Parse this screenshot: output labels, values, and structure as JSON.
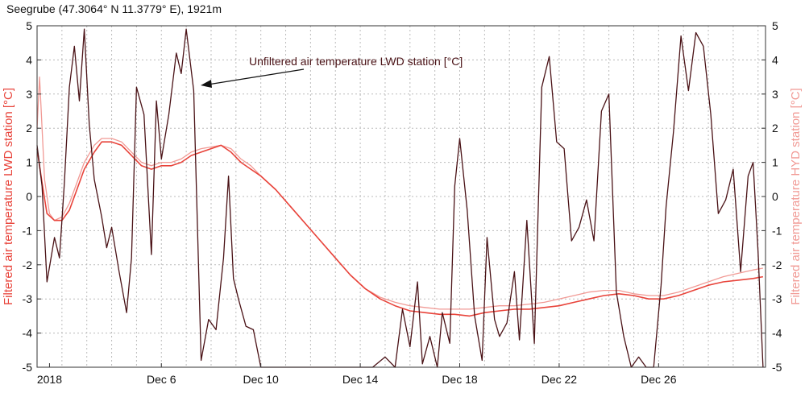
{
  "chart_data": {
    "type": "line",
    "title": "Seegrube (47.3064° N 11.3779° E), 1921m",
    "ylabel_left": "Filtered air temperature LWD station [°C]",
    "ylabel_right": "Filtered air temperature HYD station [°C]",
    "annotation": "Unfiltered air temperature LWD station [°C]",
    "ylim": [
      -5,
      5
    ],
    "yticks": [
      -5,
      -4,
      -3,
      -2,
      -1,
      0,
      1,
      2,
      3,
      4,
      5
    ],
    "xlim_days": [
      0,
      29.3
    ],
    "xticks": [
      {
        "label": "2018",
        "day": 0.5
      },
      {
        "label": "Dec 6",
        "day": 5
      },
      {
        "label": "Dec 10",
        "day": 9
      },
      {
        "label": "Dec 14",
        "day": 13
      },
      {
        "label": "Dec 18",
        "day": 17
      },
      {
        "label": "Dec 22",
        "day": 21
      },
      {
        "label": "Dec 26",
        "day": 25
      }
    ],
    "grid": true,
    "colors": {
      "unfiltered": "#4a1216",
      "lwd_filtered": "#e8433a",
      "hyd_filtered": "#f19a95",
      "left_axis_label": "#e8433a",
      "right_axis_label": "#f19a95",
      "grid": "#bbbbbb",
      "annotation_text": "#4a1216"
    },
    "series": [
      {
        "name": "Unfiltered air temperature LWD station [°C]",
        "key": "unfiltered",
        "x": [
          0,
          0.2,
          0.4,
          0.7,
          0.9,
          1.1,
          1.3,
          1.5,
          1.7,
          1.9,
          2.1,
          2.3,
          2.6,
          2.8,
          3.0,
          3.3,
          3.6,
          3.8,
          4.0,
          4.3,
          4.6,
          4.8,
          5.0,
          5.3,
          5.6,
          5.8,
          6.0,
          6.3,
          6.6,
          6.9,
          7.2,
          7.5,
          7.7,
          7.9,
          8.1,
          8.4,
          8.7,
          9.0,
          9.3,
          9.6,
          9.9,
          10.2,
          10.5,
          10.8,
          11.1,
          11.5,
          12.0,
          12.5,
          13.0,
          13.5,
          14.0,
          14.4,
          14.7,
          15.0,
          15.3,
          15.5,
          15.8,
          16.1,
          16.3,
          16.6,
          16.8,
          17.0,
          17.3,
          17.6,
          17.9,
          18.1,
          18.4,
          18.6,
          18.9,
          19.2,
          19.4,
          19.7,
          20.0,
          20.3,
          20.6,
          20.9,
          21.2,
          21.5,
          21.8,
          22.1,
          22.4,
          22.7,
          23.0,
          23.3,
          23.6,
          23.9,
          24.2,
          24.5,
          24.8,
          25.1,
          25.3,
          25.6,
          25.9,
          26.2,
          26.5,
          26.8,
          27.1,
          27.4,
          27.7,
          28.0,
          28.3,
          28.6,
          28.8,
          29.0,
          29.2
        ],
        "values": [
          1.5,
          0.3,
          -2.5,
          -1.2,
          -1.8,
          0.4,
          3.2,
          4.4,
          2.8,
          4.9,
          2.1,
          0.5,
          -0.6,
          -1.5,
          -0.9,
          -2.2,
          -3.4,
          -1.8,
          3.2,
          2.4,
          -1.7,
          2.8,
          1.1,
          2.4,
          4.2,
          3.6,
          4.9,
          3.1,
          -4.8,
          -3.6,
          -3.9,
          -1.8,
          0.6,
          -2.4,
          -3.0,
          -3.8,
          -3.9,
          -5.0,
          -5.0,
          -5.0,
          -5.0,
          -5.0,
          -5.0,
          -5.0,
          -5.0,
          -5.0,
          -5.0,
          -5.0,
          -5.0,
          -5.0,
          -4.7,
          -5.0,
          -3.3,
          -4.4,
          -2.5,
          -4.9,
          -4.1,
          -5.0,
          -3.4,
          -4.3,
          0.3,
          1.7,
          -0.4,
          -3.5,
          -4.8,
          -1.2,
          -3.6,
          -4.1,
          -3.7,
          -2.2,
          -4.2,
          -0.7,
          -4.3,
          3.2,
          4.1,
          1.6,
          1.4,
          -1.3,
          -0.9,
          -0.1,
          -1.3,
          2.5,
          3.0,
          -2.8,
          -4.1,
          -5.0,
          -4.7,
          -5.0,
          -5.0,
          -2.6,
          -0.3,
          1.9,
          4.7,
          3.1,
          4.8,
          4.4,
          2.4,
          -0.5,
          -0.1,
          0.8,
          -2.2,
          0.6,
          1.0,
          -1.6,
          -5.0
        ]
      },
      {
        "name": "Filtered air temperature LWD station [°C]",
        "key": "lwd_filtered",
        "x": [
          0,
          0.2,
          0.4,
          0.7,
          1.0,
          1.3,
          1.6,
          1.9,
          2.3,
          2.6,
          3.0,
          3.4,
          3.8,
          4.2,
          4.6,
          5.0,
          5.4,
          5.8,
          6.2,
          6.6,
          7.0,
          7.4,
          7.8,
          8.2,
          8.6,
          9.0,
          9.6,
          10.2,
          10.8,
          11.4,
          12.0,
          12.6,
          13.2,
          13.8,
          14.4,
          15.0,
          15.6,
          16.2,
          16.8,
          17.4,
          18.0,
          18.6,
          19.2,
          19.8,
          20.4,
          21.0,
          21.6,
          22.2,
          22.8,
          23.4,
          24.0,
          24.6,
          25.2,
          25.8,
          26.4,
          27.0,
          27.6,
          28.2,
          28.8,
          29.2
        ],
        "values": [
          1.4,
          0.4,
          -0.5,
          -0.7,
          -0.7,
          -0.4,
          0.2,
          0.8,
          1.3,
          1.6,
          1.6,
          1.5,
          1.2,
          0.9,
          0.8,
          0.9,
          0.9,
          1.0,
          1.2,
          1.3,
          1.4,
          1.5,
          1.3,
          1.0,
          0.8,
          0.6,
          0.2,
          -0.3,
          -0.8,
          -1.3,
          -1.8,
          -2.3,
          -2.7,
          -3.0,
          -3.2,
          -3.35,
          -3.4,
          -3.45,
          -3.45,
          -3.5,
          -3.4,
          -3.35,
          -3.3,
          -3.3,
          -3.25,
          -3.2,
          -3.1,
          -3.0,
          -2.9,
          -2.85,
          -2.9,
          -3.0,
          -3.0,
          -2.9,
          -2.75,
          -2.6,
          -2.5,
          -2.45,
          -2.4,
          -2.35
        ]
      },
      {
        "name": "Filtered air temperature HYD station [°C]",
        "key": "hyd_filtered",
        "x": [
          0,
          0.1,
          0.2,
          0.3,
          0.5,
          0.7,
          1.0,
          1.3,
          1.6,
          1.9,
          2.3,
          2.6,
          3.0,
          3.4,
          3.8,
          4.2,
          4.6,
          5.0,
          5.4,
          5.8,
          6.2,
          6.6,
          7.0,
          7.4,
          7.8,
          8.2,
          8.6,
          9.0,
          9.6,
          10.2,
          10.8,
          11.4,
          12.0,
          12.6,
          13.2,
          13.8,
          14.4,
          15.0,
          15.6,
          16.2,
          16.8,
          17.4,
          18.0,
          18.6,
          19.2,
          19.8,
          20.4,
          21.0,
          21.6,
          22.2,
          22.8,
          23.4,
          24.0,
          24.6,
          25.2,
          25.8,
          26.4,
          27.0,
          27.6,
          28.2,
          28.8,
          29.2
        ],
        "values": [
          2.0,
          3.5,
          2.0,
          0.5,
          -0.5,
          -0.7,
          -0.6,
          -0.2,
          0.4,
          1.0,
          1.5,
          1.7,
          1.7,
          1.6,
          1.3,
          1.0,
          0.9,
          1.0,
          1.0,
          1.1,
          1.3,
          1.4,
          1.45,
          1.5,
          1.4,
          1.1,
          0.9,
          0.6,
          0.2,
          -0.3,
          -0.8,
          -1.3,
          -1.8,
          -2.3,
          -2.7,
          -2.95,
          -3.1,
          -3.2,
          -3.25,
          -3.3,
          -3.3,
          -3.3,
          -3.25,
          -3.2,
          -3.2,
          -3.15,
          -3.1,
          -3.0,
          -2.9,
          -2.8,
          -2.75,
          -2.75,
          -2.85,
          -2.9,
          -2.9,
          -2.8,
          -2.65,
          -2.5,
          -2.35,
          -2.25,
          -2.15,
          -2.1
        ]
      }
    ]
  }
}
